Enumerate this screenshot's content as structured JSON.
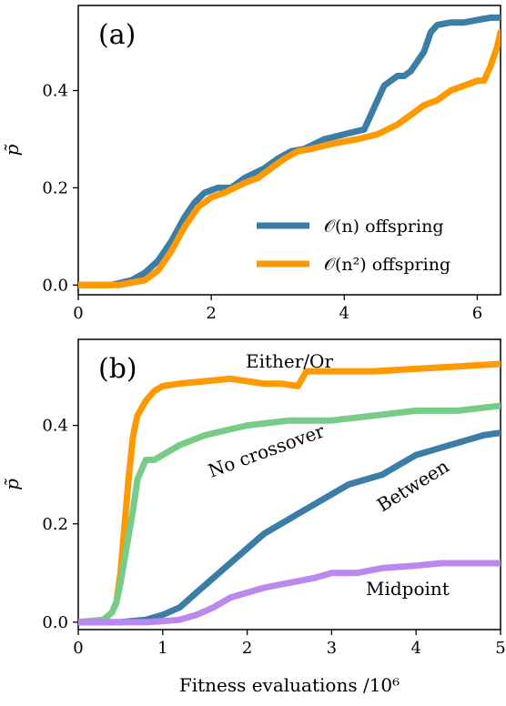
{
  "chart_data": [
    {
      "type": "line",
      "panel_label": "(a)",
      "ylabel": "p̃",
      "xlabel": "",
      "xlim": [
        0,
        6.35
      ],
      "ylim": [
        -0.02,
        0.575
      ],
      "x_ticks": [
        0,
        2,
        4,
        6
      ],
      "x_tick_labels": [
        "0",
        "2",
        "4",
        "6"
      ],
      "y_ticks": [
        0,
        0.2,
        0.4
      ],
      "y_tick_labels": [
        "0.0",
        "0.2",
        "0.4"
      ],
      "legend_position": "lower-right",
      "series": [
        {
          "name": "𝒪(n) offspring",
          "color": "#3b7da6",
          "x": [
            0,
            0.5,
            0.8,
            1.0,
            1.2,
            1.4,
            1.6,
            1.75,
            1.9,
            2.1,
            2.3,
            2.5,
            2.8,
            3.0,
            3.2,
            3.4,
            3.7,
            4.0,
            4.3,
            4.5,
            4.6,
            4.7,
            4.8,
            4.9,
            5.0,
            5.1,
            5.2,
            5.3,
            5.4,
            5.6,
            5.8,
            6.0,
            6.2,
            6.35
          ],
          "y": [
            0,
            0,
            0.01,
            0.025,
            0.05,
            0.09,
            0.14,
            0.17,
            0.19,
            0.2,
            0.2,
            0.22,
            0.24,
            0.26,
            0.275,
            0.28,
            0.3,
            0.31,
            0.32,
            0.38,
            0.41,
            0.42,
            0.43,
            0.43,
            0.44,
            0.46,
            0.48,
            0.52,
            0.535,
            0.54,
            0.54,
            0.545,
            0.55,
            0.55
          ]
        },
        {
          "name": "𝒪(n²) offspring",
          "color": "#ff9900",
          "x": [
            0,
            0.6,
            1.0,
            1.2,
            1.4,
            1.6,
            1.8,
            2.0,
            2.2,
            2.5,
            2.7,
            2.9,
            3.1,
            3.3,
            3.5,
            3.8,
            4.0,
            4.2,
            4.5,
            4.8,
            5.0,
            5.2,
            5.4,
            5.6,
            5.8,
            6.0,
            6.1,
            6.2,
            6.3,
            6.35
          ],
          "y": [
            0,
            0,
            0.01,
            0.03,
            0.07,
            0.12,
            0.16,
            0.18,
            0.19,
            0.21,
            0.22,
            0.24,
            0.26,
            0.275,
            0.28,
            0.29,
            0.295,
            0.3,
            0.31,
            0.33,
            0.35,
            0.37,
            0.38,
            0.4,
            0.41,
            0.42,
            0.42,
            0.45,
            0.49,
            0.52
          ]
        }
      ]
    },
    {
      "type": "line",
      "panel_label": "(b)",
      "ylabel": "p̃",
      "xlabel": "Fitness evaluations /10⁶",
      "xlim": [
        0,
        5
      ],
      "ylim": [
        -0.015,
        0.575
      ],
      "x_ticks": [
        0,
        1,
        2,
        3,
        4,
        5
      ],
      "x_tick_labels": [
        "0",
        "1",
        "2",
        "3",
        "4",
        "5"
      ],
      "y_ticks": [
        0,
        0.2,
        0.4
      ],
      "y_tick_labels": [
        "0.0",
        "0.2",
        "0.4"
      ],
      "series": [
        {
          "name": "Either/Or",
          "color": "#ff9900",
          "x": [
            0,
            0.3,
            0.4,
            0.45,
            0.5,
            0.55,
            0.6,
            0.65,
            0.7,
            0.8,
            0.9,
            1.0,
            1.2,
            1.5,
            1.8,
            2.0,
            2.2,
            2.4,
            2.6,
            2.7,
            3.0,
            3.5,
            4.0,
            4.5,
            5.0
          ],
          "y": [
            0,
            0.005,
            0.02,
            0.04,
            0.1,
            0.2,
            0.3,
            0.38,
            0.42,
            0.45,
            0.47,
            0.48,
            0.485,
            0.49,
            0.495,
            0.49,
            0.485,
            0.485,
            0.48,
            0.51,
            0.51,
            0.51,
            0.515,
            0.52,
            0.525
          ]
        },
        {
          "name": "No crossover",
          "color": "#77cc88",
          "x": [
            0,
            0.3,
            0.4,
            0.45,
            0.5,
            0.55,
            0.6,
            0.65,
            0.7,
            0.75,
            0.8,
            0.9,
            1.0,
            1.2,
            1.5,
            2.0,
            2.5,
            3.0,
            3.5,
            4.0,
            4.5,
            5.0
          ],
          "y": [
            0,
            0.005,
            0.02,
            0.04,
            0.08,
            0.13,
            0.18,
            0.23,
            0.29,
            0.31,
            0.33,
            0.33,
            0.34,
            0.36,
            0.38,
            0.4,
            0.41,
            0.41,
            0.42,
            0.43,
            0.43,
            0.44
          ]
        },
        {
          "name": "Between",
          "color": "#3b7da6",
          "x": [
            0,
            0.5,
            0.8,
            1.0,
            1.2,
            1.4,
            1.6,
            1.8,
            2.0,
            2.2,
            2.4,
            2.6,
            2.8,
            3.0,
            3.2,
            3.4,
            3.6,
            3.8,
            4.0,
            4.2,
            4.4,
            4.6,
            4.8,
            5.0
          ],
          "y": [
            0,
            0,
            0.005,
            0.015,
            0.03,
            0.06,
            0.09,
            0.12,
            0.15,
            0.18,
            0.2,
            0.22,
            0.24,
            0.26,
            0.28,
            0.29,
            0.3,
            0.32,
            0.34,
            0.35,
            0.36,
            0.37,
            0.38,
            0.385
          ]
        },
        {
          "name": "Midpoint",
          "color": "#bb88ee",
          "x": [
            0,
            0.5,
            0.8,
            1.0,
            1.2,
            1.4,
            1.6,
            1.8,
            2.0,
            2.2,
            2.5,
            2.8,
            3.0,
            3.3,
            3.6,
            4.0,
            4.3,
            4.6,
            5.0
          ],
          "y": [
            0,
            0,
            0,
            0.002,
            0.005,
            0.015,
            0.03,
            0.05,
            0.06,
            0.07,
            0.08,
            0.09,
            0.1,
            0.1,
            0.11,
            0.115,
            0.12,
            0.12,
            0.12
          ]
        }
      ]
    }
  ]
}
